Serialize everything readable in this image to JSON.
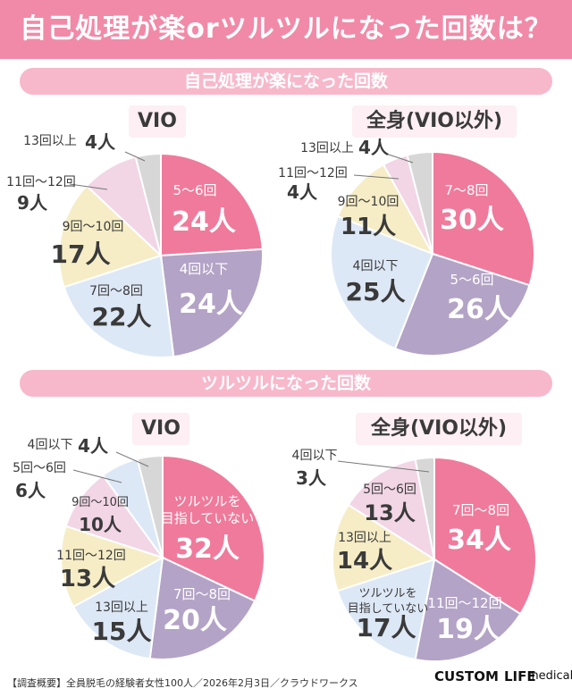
{
  "page": {
    "title": "自己処理が楽orツルツルになった回数は？",
    "section1": "自己処理が楽になった回数",
    "section2": "ツルツルになった回数",
    "footer": "【調査概要】全員脱毛の経験者女性100人／2026年2月3日／クラウドワークス",
    "logo_custom": "CUSTOM",
    "logo_life": "LIFE",
    "logo_medical": "medical"
  },
  "colors": {
    "pink": "#f07a9c",
    "purple": "#b3a3c6",
    "lightblue": "#dde8f6",
    "cream": "#f6edc6",
    "lightpink": "#f2d6e5",
    "gray": "#d7d7d7",
    "accent": "#f18aa8"
  },
  "chart_data": [
    {
      "type": "pie",
      "title": "VIO",
      "group": "自己処理が楽になった回数",
      "categories": [
        "5〜6回",
        "4回以下",
        "7回〜8回",
        "9回〜10回",
        "11回〜12回",
        "13回以上"
      ],
      "values": [
        24,
        24,
        22,
        17,
        9,
        4
      ],
      "value_labels": [
        "24人",
        "24人",
        "22人",
        "17人",
        "9人",
        "4人"
      ],
      "unit": "人"
    },
    {
      "type": "pie",
      "title": "全身(VIO以外)",
      "group": "自己処理が楽になった回数",
      "categories": [
        "7〜8回",
        "5〜6回",
        "4回以下",
        "9回〜10回",
        "11回〜12回",
        "13回以上"
      ],
      "values": [
        30,
        26,
        25,
        11,
        4,
        4
      ],
      "value_labels": [
        "30人",
        "26人",
        "25人",
        "11人",
        "4人",
        "4人"
      ],
      "unit": "人"
    },
    {
      "type": "pie",
      "title": "VIO",
      "group": "ツルツルになった回数",
      "categories": [
        "ツルツルを目指していない",
        "7回〜8回",
        "13回以上",
        "11回〜12回",
        "9回〜10回",
        "5回〜6回",
        "4回以下"
      ],
      "values": [
        32,
        20,
        15,
        13,
        10,
        6,
        4
      ],
      "value_labels": [
        "32人",
        "20人",
        "15人",
        "13人",
        "10人",
        "6人",
        "4人"
      ],
      "unit": "人"
    },
    {
      "type": "pie",
      "title": "全身(VIO以外)",
      "group": "ツルツルになった回数",
      "categories": [
        "7回〜8回",
        "11回〜12回",
        "ツルツルを目指していない",
        "13回以上",
        "5回〜6回",
        "4回以下"
      ],
      "values": [
        34,
        19,
        17,
        14,
        13,
        3
      ],
      "value_labels": [
        "34人",
        "19人",
        "17人",
        "14人",
        "13人",
        "3人"
      ],
      "unit": "人"
    }
  ]
}
